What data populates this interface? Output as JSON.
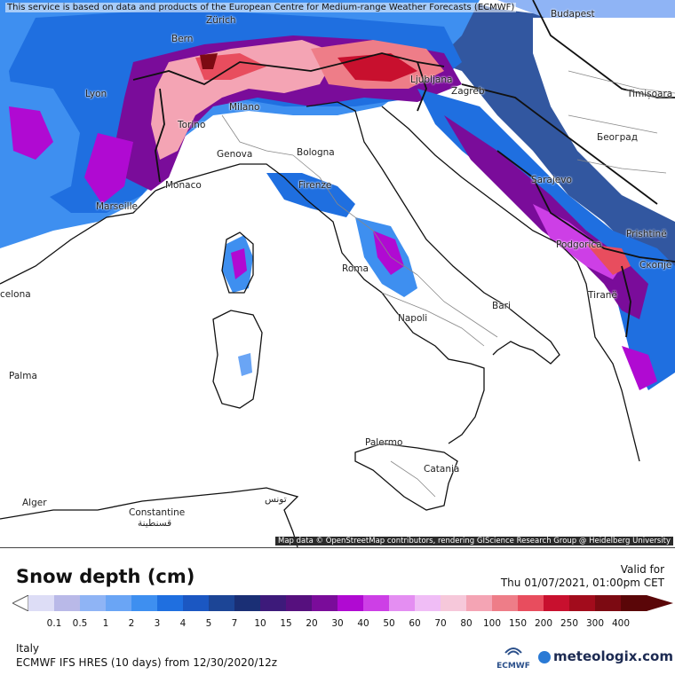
{
  "disclaimer": "This service is based on data and products of the European Centre for Medium-range Weather Forecasts (ECMWF)",
  "attribution": "Map data © OpenStreetMap contributors, rendering GIScience Research Group @ Heidelberg University",
  "cities": [
    {
      "id": "zurich",
      "name": "Zürich"
    },
    {
      "id": "budapest",
      "name": "Budapest"
    },
    {
      "id": "bern",
      "name": "Bern"
    },
    {
      "id": "lyon",
      "name": "Lyon"
    },
    {
      "id": "ljubljana",
      "name": "Ljubljana"
    },
    {
      "id": "zagreb",
      "name": "Zagreb"
    },
    {
      "id": "timisoara",
      "name": "Timișoara"
    },
    {
      "id": "milano",
      "name": "Milano"
    },
    {
      "id": "torino",
      "name": "Torino"
    },
    {
      "id": "beograd",
      "name": "Београд"
    },
    {
      "id": "genova",
      "name": "Genova"
    },
    {
      "id": "bologna",
      "name": "Bologna"
    },
    {
      "id": "monaco",
      "name": "Monaco"
    },
    {
      "id": "firenze",
      "name": "Firenze"
    },
    {
      "id": "sarajevo",
      "name": "Sarajevo"
    },
    {
      "id": "marseille",
      "name": "Marseille"
    },
    {
      "id": "podgorica",
      "name": "Podgorica"
    },
    {
      "id": "pristine",
      "name": "Prishtinë"
    },
    {
      "id": "roma",
      "name": "Roma"
    },
    {
      "id": "skopje",
      "name": "Скопје"
    },
    {
      "id": "barcelona",
      "name": "celona"
    },
    {
      "id": "tirane",
      "name": "Tiranë"
    },
    {
      "id": "bari",
      "name": "Bari"
    },
    {
      "id": "napoli",
      "name": "Napoli"
    },
    {
      "id": "palma",
      "name": "Palma"
    },
    {
      "id": "palermo",
      "name": "Palermo"
    },
    {
      "id": "catania",
      "name": "Catania"
    },
    {
      "id": "alger",
      "name": "Alger"
    },
    {
      "id": "constantine",
      "name": "Constantine"
    },
    {
      "id": "constantine_ar",
      "name": "قسنطينة"
    },
    {
      "id": "tunis",
      "name": "تونس"
    }
  ],
  "legend": {
    "title": "Snow depth (cm)",
    "valid_label": "Valid for",
    "valid_date": "Thu 01/07/2021, 01:00pm CET",
    "ticks": [
      "0.1",
      "0.5",
      "1",
      "2",
      "3",
      "4",
      "5",
      "7",
      "10",
      "15",
      "20",
      "30",
      "40",
      "50",
      "60",
      "70",
      "80",
      "100",
      "150",
      "200",
      "250",
      "300",
      "400"
    ],
    "colors": [
      "#ddddf6",
      "#b9b9e8",
      "#8fb4f5",
      "#6aa5f5",
      "#3e8ff0",
      "#1f6fe0",
      "#1b57c2",
      "#1c4596",
      "#1a2f75",
      "#3d1a7a",
      "#56107e",
      "#7a0c9a",
      "#b00ad2",
      "#cd3fe6",
      "#e48ef2",
      "#f0bdf6",
      "#f6c8da",
      "#f4a4b4",
      "#ee7d88",
      "#e84d5e",
      "#c8102e",
      "#a20c1c",
      "#7c0a12",
      "#5a0608"
    ]
  },
  "footer": {
    "region": "Italy",
    "model": "ECMWF IFS HRES (10 days) from 12/30/2020/12z",
    "ecmwf_logo": "ECMWF",
    "brand": "meteologix.com"
  }
}
